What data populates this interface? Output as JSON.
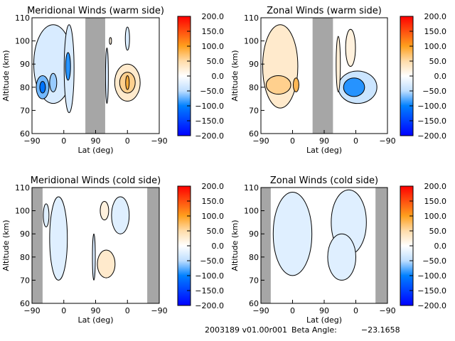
{
  "footer": {
    "date_version": "2003189 v01.00r001",
    "beta_label": "Beta Angle:",
    "beta_value": "-23.1658"
  },
  "chart_data": [
    {
      "type": "heatmap",
      "title": "Meridional Winds (warm side)",
      "xlabel": "Lat (deg)",
      "ylabel": "Altitude (km)",
      "xticks": [
        "-90",
        "0",
        "90",
        "0",
        "-90"
      ],
      "yticks": [
        "60",
        "70",
        "80",
        "90",
        "100",
        "110"
      ],
      "ylim": [
        60,
        110
      ],
      "track_range": [
        0,
        360
      ],
      "colorbar_ticks": [
        "200.0",
        "150.0",
        "100.0",
        "50.0",
        "0.0",
        "-50.0",
        "-100.0",
        "-150.0",
        "-200.0"
      ],
      "clim": [
        -200,
        200
      ],
      "no_data": [
        [
          151,
          207
        ]
      ],
      "contours": [
        {
          "x": 60,
          "alt": 90,
          "rx": 55,
          "ry": 17,
          "value": -30
        },
        {
          "x": 105,
          "alt": 88,
          "rx": 14,
          "ry": 19,
          "value": -30
        },
        {
          "x": 30,
          "alt": 80,
          "rx": 18,
          "ry": 5,
          "value": -70
        },
        {
          "x": 60,
          "alt": 82,
          "rx": 10,
          "ry": 4,
          "value": -60
        },
        {
          "x": 30,
          "alt": 80,
          "rx": 8,
          "ry": 2.5,
          "value": -110
        },
        {
          "x": 102,
          "alt": 89,
          "rx": 7,
          "ry": 6,
          "value": -90
        },
        {
          "x": 212,
          "alt": 85,
          "rx": 4,
          "ry": 12,
          "value": -30
        },
        {
          "x": 270,
          "alt": 82,
          "rx": 36,
          "ry": 8,
          "value": 30
        },
        {
          "x": 270,
          "alt": 82,
          "rx": 22,
          "ry": 4.5,
          "value": 60
        },
        {
          "x": 270,
          "alt": 82,
          "rx": 5,
          "ry": 3,
          "value": 90
        },
        {
          "x": 270,
          "alt": 101,
          "rx": 6,
          "ry": 5,
          "value": -30
        },
        {
          "x": 222,
          "alt": 100,
          "rx": 3,
          "ry": 1.5,
          "value": 20
        }
      ]
    },
    {
      "type": "heatmap",
      "title": "Zonal Winds (warm side)",
      "xlabel": "Lat (deg)",
      "ylabel": "Altitude (km)",
      "xticks": [
        "-90",
        "0",
        "90",
        "0",
        "-90"
      ],
      "yticks": [
        "60",
        "70",
        "80",
        "90",
        "100",
        "110"
      ],
      "ylim": [
        60,
        110
      ],
      "track_range": [
        0,
        360
      ],
      "colorbar_ticks": [
        "200.0",
        "150.0",
        "100.0",
        "50.0",
        "0.0",
        "-50.0",
        "-100.0",
        "-150.0",
        "-200.0"
      ],
      "clim": [
        -200,
        200
      ],
      "no_data": [
        [
          147,
          205
        ]
      ],
      "contours": [
        {
          "x": 55,
          "alt": 89,
          "rx": 50,
          "ry": 18,
          "value": 30
        },
        {
          "x": 50,
          "alt": 81,
          "rx": 35,
          "ry": 4,
          "value": 60
        },
        {
          "x": 100,
          "alt": 81,
          "rx": 8,
          "ry": 3,
          "value": 80
        },
        {
          "x": 275,
          "alt": 80,
          "rx": 55,
          "ry": 7,
          "value": -40
        },
        {
          "x": 265,
          "alt": 80,
          "rx": 30,
          "ry": 4,
          "value": -90
        },
        {
          "x": 255,
          "alt": 97,
          "rx": 14,
          "ry": 8,
          "value": 20
        },
        {
          "x": 220,
          "alt": 90,
          "rx": 6,
          "ry": 12,
          "value": 25
        }
      ]
    },
    {
      "type": "heatmap",
      "title": "Meridional Winds (cold side)",
      "xlabel": "Lat (deg)",
      "ylabel": "Altitude (km)",
      "xticks": [
        "-90",
        "0",
        "90",
        "0",
        "-90"
      ],
      "yticks": [
        "60",
        "70",
        "80",
        "90",
        "100",
        "110"
      ],
      "ylim": [
        60,
        110
      ],
      "track_range": [
        0,
        360
      ],
      "colorbar_ticks": [
        "200.0",
        "150.0",
        "100.0",
        "50.0",
        "0.0",
        "-50.0",
        "-100.0",
        "-150.0",
        "-200.0"
      ],
      "clim": [
        -200,
        200
      ],
      "no_data": [
        [
          0,
          30
        ],
        [
          326,
          360
        ]
      ],
      "contours": [
        {
          "x": 40,
          "alt": 98,
          "rx": 8,
          "ry": 5,
          "value": -25
        },
        {
          "x": 75,
          "alt": 88,
          "rx": 25,
          "ry": 18,
          "value": -25
        },
        {
          "x": 175,
          "alt": 80,
          "rx": 4,
          "ry": 10,
          "value": -30
        },
        {
          "x": 210,
          "alt": 77,
          "rx": 25,
          "ry": 6,
          "value": 30
        },
        {
          "x": 205,
          "alt": 100,
          "rx": 12,
          "ry": 4,
          "value": 20
        },
        {
          "x": 250,
          "alt": 98,
          "rx": 25,
          "ry": 8,
          "value": -25
        }
      ]
    },
    {
      "type": "heatmap",
      "title": "Zonal Winds (cold side)",
      "xlabel": "Lat (deg)",
      "ylabel": "Altitude (km)",
      "xticks": [
        "-90",
        "0",
        "90",
        "0",
        "-90"
      ],
      "yticks": [
        "60",
        "70",
        "80",
        "90",
        "100",
        "110"
      ],
      "ylim": [
        60,
        110
      ],
      "track_range": [
        0,
        360
      ],
      "colorbar_ticks": [
        "200.0",
        "150.0",
        "100.0",
        "50.0",
        "0.0",
        "-50.0",
        "-100.0",
        "-150.0",
        "-200.0"
      ],
      "clim": [
        -200,
        200
      ],
      "no_data": [
        [
          0,
          28
        ],
        [
          326,
          360
        ]
      ],
      "contours": [
        {
          "x": 90,
          "alt": 90,
          "rx": 55,
          "ry": 18,
          "value": -25
        },
        {
          "x": 250,
          "alt": 95,
          "rx": 50,
          "ry": 14,
          "value": -25
        },
        {
          "x": 230,
          "alt": 80,
          "rx": 40,
          "ry": 10,
          "value": -25
        }
      ]
    }
  ]
}
